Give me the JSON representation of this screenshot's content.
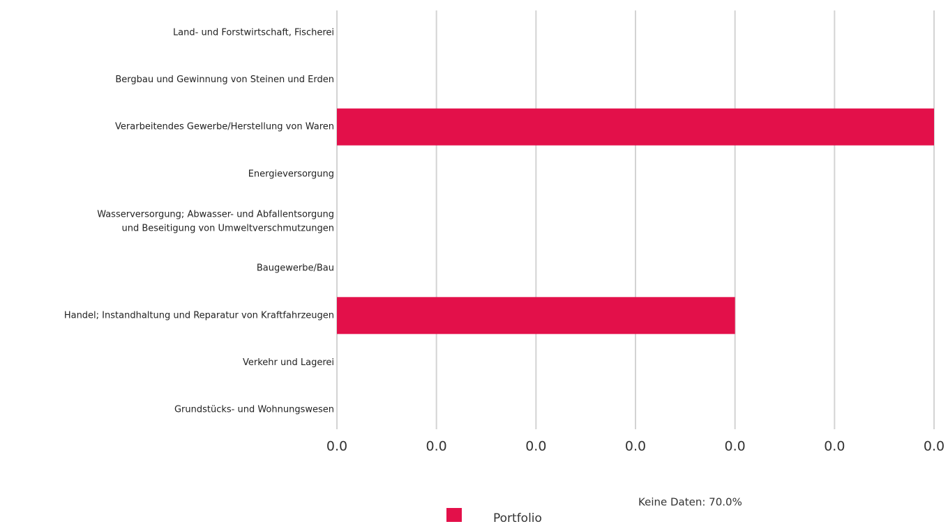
{
  "chart_data": {
    "type": "hbar",
    "categories": [
      "Land- und Forstwirtschaft, Fischerei",
      "Bergbau und Gewinnung von Steinen und Erden",
      "Verarbeitendes Gewerbe/Herstellung von Waren",
      "Energieversorgung",
      "Wasserversorgung; Abwasser- und Abfallentsorgung\nund Beseitigung von Umweltverschmutzungen",
      "Baugewerbe/Bau",
      "Handel; Instandhaltung und Reparatur von Kraftfahrzeugen",
      "Verkehr und Lagerei",
      "Grundstücks- und Wohnungswesen"
    ],
    "series": [
      {
        "name": "Portfolio",
        "color": "#e3104a",
        "values": [
          0,
          0,
          0.03,
          0,
          0,
          0,
          0.02,
          0,
          0
        ]
      }
    ],
    "xlim": [
      0,
      0.03
    ],
    "xticks": [
      {
        "value": 0,
        "label": "0.0"
      },
      {
        "value": 0.005,
        "label": "0.0"
      },
      {
        "value": 0.01,
        "label": "0.0"
      },
      {
        "value": 0.015,
        "label": "0.0"
      },
      {
        "value": 0.02,
        "label": "0.0"
      },
      {
        "value": 0.025,
        "label": "0.0"
      },
      {
        "value": 0.03,
        "label": "0.0"
      }
    ],
    "grid": true,
    "legend": "bottom",
    "annotations": [
      "Keine Daten: 70.0%"
    ]
  }
}
